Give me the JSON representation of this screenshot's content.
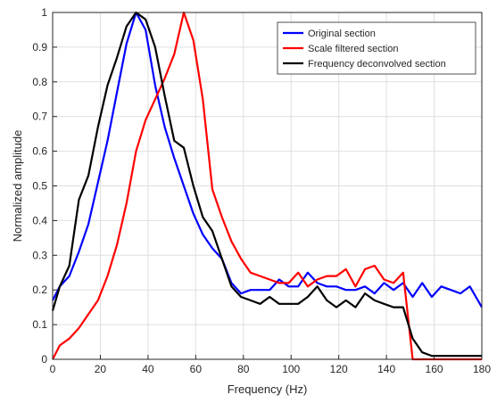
{
  "chart_data": {
    "type": "line",
    "title": "",
    "xlabel": "Frequency (Hz)",
    "ylabel": "Normalized amplitude",
    "xlim": [
      0,
      180
    ],
    "ylim": [
      0,
      1
    ],
    "xticks": [
      0,
      20,
      40,
      60,
      80,
      100,
      120,
      140,
      160,
      180
    ],
    "yticks": [
      0,
      0.1,
      0.2,
      0.3,
      0.4,
      0.5,
      0.6,
      0.7,
      0.8,
      0.9,
      1
    ],
    "grid": true,
    "legend_position": "top-right",
    "series": [
      {
        "name": "Original section",
        "color": "#0000ff",
        "x": [
          0,
          3,
          7,
          11,
          15,
          19,
          23,
          27,
          31,
          35,
          39,
          43,
          47,
          51,
          55,
          59,
          63,
          67,
          71,
          75,
          79,
          83,
          87,
          91,
          95,
          99,
          103,
          107,
          111,
          115,
          119,
          123,
          127,
          131,
          135,
          139,
          143,
          147,
          151,
          155,
          159,
          163,
          167,
          171,
          175,
          180
        ],
        "y": [
          0.17,
          0.21,
          0.24,
          0.31,
          0.39,
          0.51,
          0.63,
          0.77,
          0.91,
          1.0,
          0.95,
          0.79,
          0.67,
          0.58,
          0.5,
          0.42,
          0.36,
          0.32,
          0.29,
          0.22,
          0.19,
          0.2,
          0.2,
          0.2,
          0.23,
          0.21,
          0.21,
          0.25,
          0.22,
          0.21,
          0.21,
          0.2,
          0.2,
          0.21,
          0.19,
          0.22,
          0.2,
          0.22,
          0.18,
          0.22,
          0.18,
          0.21,
          0.2,
          0.19,
          0.21,
          0.15
        ]
      },
      {
        "name": "Scale filtered section",
        "color": "#ff0000",
        "x": [
          0,
          3,
          7,
          11,
          15,
          19,
          23,
          27,
          31,
          35,
          39,
          43,
          47,
          51,
          55,
          59,
          63,
          67,
          71,
          75,
          79,
          83,
          87,
          91,
          95,
          99,
          103,
          107,
          111,
          115,
          119,
          123,
          127,
          131,
          135,
          139,
          143,
          147,
          151,
          155,
          159,
          163,
          167,
          171,
          175,
          180
        ],
        "y": [
          0.0,
          0.04,
          0.06,
          0.09,
          0.13,
          0.17,
          0.24,
          0.33,
          0.45,
          0.6,
          0.69,
          0.75,
          0.81,
          0.88,
          1.0,
          0.92,
          0.75,
          0.49,
          0.41,
          0.34,
          0.29,
          0.25,
          0.24,
          0.23,
          0.22,
          0.22,
          0.25,
          0.21,
          0.23,
          0.24,
          0.24,
          0.26,
          0.21,
          0.26,
          0.27,
          0.23,
          0.22,
          0.25,
          0.0,
          0.0,
          0.0,
          0.0,
          0.0,
          0.0,
          0.0,
          0.0
        ]
      },
      {
        "name": "Frequency deconvolved section",
        "color": "#000000",
        "x": [
          0,
          3,
          7,
          11,
          15,
          19,
          23,
          27,
          31,
          35,
          39,
          43,
          47,
          51,
          55,
          59,
          63,
          67,
          71,
          75,
          79,
          83,
          87,
          91,
          95,
          99,
          103,
          107,
          111,
          115,
          119,
          123,
          127,
          131,
          135,
          139,
          143,
          147,
          151,
          155,
          159,
          163,
          167,
          171,
          175,
          180
        ],
        "y": [
          0.14,
          0.21,
          0.27,
          0.46,
          0.53,
          0.67,
          0.79,
          0.87,
          0.96,
          1.0,
          0.98,
          0.9,
          0.76,
          0.63,
          0.61,
          0.5,
          0.41,
          0.37,
          0.29,
          0.21,
          0.18,
          0.17,
          0.16,
          0.18,
          0.16,
          0.16,
          0.16,
          0.18,
          0.21,
          0.17,
          0.15,
          0.17,
          0.15,
          0.19,
          0.17,
          0.16,
          0.15,
          0.15,
          0.06,
          0.02,
          0.01,
          0.01,
          0.01,
          0.01,
          0.01,
          0.01
        ]
      }
    ]
  }
}
